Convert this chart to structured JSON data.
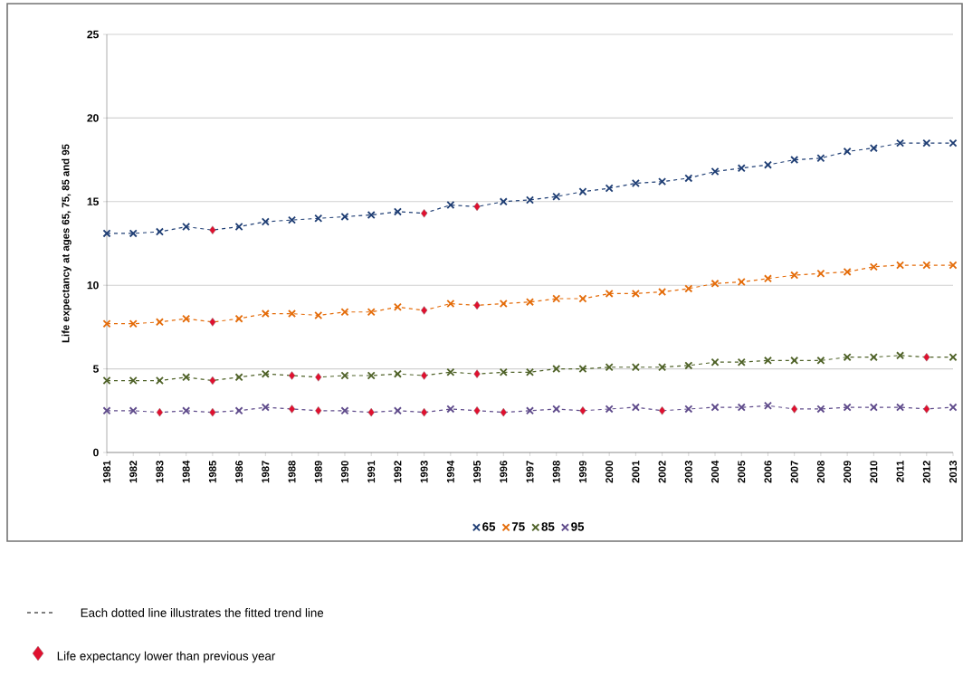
{
  "chart_data": {
    "type": "line",
    "ylabel": "Life expectancy at ages 65, 75, 85 and 95",
    "categories": [
      "1981",
      "1982",
      "1983",
      "1984",
      "1985",
      "1986",
      "1987",
      "1988",
      "1989",
      "1990",
      "1991",
      "1992",
      "1993",
      "1994",
      "1995",
      "1996",
      "1997",
      "1998",
      "1999",
      "2000",
      "2001",
      "2002",
      "2003",
      "2004",
      "2005",
      "2006",
      "2007",
      "2008",
      "2009",
      "2010",
      "2011",
      "2012",
      "2013"
    ],
    "ylim": [
      0,
      25
    ],
    "yticks": [
      0,
      5,
      10,
      15,
      20,
      25
    ],
    "grid": "y",
    "legend": "bottom",
    "marker": "cross",
    "line_style": "dashed",
    "series": [
      {
        "name": "65",
        "color": "#1f3e74",
        "values": [
          13.1,
          13.1,
          13.2,
          13.5,
          13.3,
          13.5,
          13.8,
          13.9,
          14.0,
          14.1,
          14.2,
          14.4,
          14.3,
          14.8,
          14.7,
          15.0,
          15.1,
          15.3,
          15.6,
          15.8,
          16.1,
          16.2,
          16.4,
          16.8,
          17.0,
          17.2,
          17.5,
          17.6,
          18.0,
          18.2,
          18.5,
          18.5,
          18.5
        ]
      },
      {
        "name": "75",
        "color": "#e46c0a",
        "values": [
          7.7,
          7.7,
          7.8,
          8.0,
          7.8,
          8.0,
          8.3,
          8.3,
          8.2,
          8.4,
          8.4,
          8.7,
          8.5,
          8.9,
          8.8,
          8.9,
          9.0,
          9.2,
          9.2,
          9.5,
          9.5,
          9.6,
          9.8,
          10.1,
          10.2,
          10.4,
          10.6,
          10.7,
          10.8,
          11.1,
          11.2,
          11.2,
          11.2
        ]
      },
      {
        "name": "85",
        "color": "#4f6228",
        "values": [
          4.3,
          4.3,
          4.3,
          4.5,
          4.3,
          4.5,
          4.7,
          4.6,
          4.5,
          4.6,
          4.6,
          4.7,
          4.6,
          4.8,
          4.7,
          4.8,
          4.8,
          5.0,
          5.0,
          5.1,
          5.1,
          5.1,
          5.2,
          5.4,
          5.4,
          5.5,
          5.5,
          5.5,
          5.7,
          5.7,
          5.8,
          5.7,
          5.7
        ]
      },
      {
        "name": "95",
        "color": "#5f4b8b",
        "values": [
          2.5,
          2.5,
          2.4,
          2.5,
          2.4,
          2.5,
          2.7,
          2.6,
          2.5,
          2.5,
          2.4,
          2.5,
          2.4,
          2.6,
          2.5,
          2.4,
          2.5,
          2.6,
          2.5,
          2.6,
          2.7,
          2.5,
          2.6,
          2.7,
          2.7,
          2.8,
          2.6,
          2.6,
          2.7,
          2.7,
          2.7,
          2.6,
          2.7
        ]
      },
      {
        "type": "scatter",
        "marker": "diamond",
        "name": "Life expectancy lower than previous year",
        "color": "#e0102f",
        "values": [
          null,
          null,
          null,
          null,
          13.3,
          null,
          null,
          null,
          null,
          null,
          null,
          null,
          14.3,
          null,
          14.7,
          null,
          null,
          null,
          null,
          null,
          null,
          null,
          null,
          null,
          null,
          null,
          null,
          null,
          null,
          null,
          null,
          null,
          null
        ]
      },
      {
        "type": "scatter",
        "marker": "diamond",
        "color": "#e0102f",
        "values": [
          null,
          null,
          null,
          null,
          7.8,
          null,
          null,
          null,
          null,
          null,
          null,
          null,
          8.5,
          null,
          8.8,
          null,
          null,
          null,
          null,
          null,
          null,
          null,
          null,
          null,
          null,
          null,
          null,
          null,
          null,
          null,
          null,
          null,
          null
        ]
      },
      {
        "type": "scatter",
        "marker": "diamond",
        "color": "#e0102f",
        "values": [
          null,
          null,
          null,
          null,
          4.3,
          null,
          null,
          4.6,
          4.5,
          null,
          null,
          null,
          4.6,
          null,
          4.7,
          null,
          null,
          null,
          null,
          null,
          null,
          null,
          null,
          null,
          null,
          null,
          null,
          null,
          null,
          null,
          null,
          5.7,
          null
        ]
      },
      {
        "type": "scatter",
        "marker": "diamond",
        "color": "#e0102f",
        "values": [
          null,
          null,
          2.4,
          null,
          2.4,
          null,
          null,
          2.6,
          2.5,
          null,
          2.4,
          null,
          2.4,
          null,
          2.5,
          2.4,
          null,
          null,
          2.5,
          null,
          null,
          2.5,
          null,
          null,
          null,
          null,
          2.6,
          null,
          null,
          null,
          null,
          2.6,
          null
        ]
      }
    ],
    "annotations": [
      "Each dotted line illustrates the fitted trend line"
    ]
  }
}
